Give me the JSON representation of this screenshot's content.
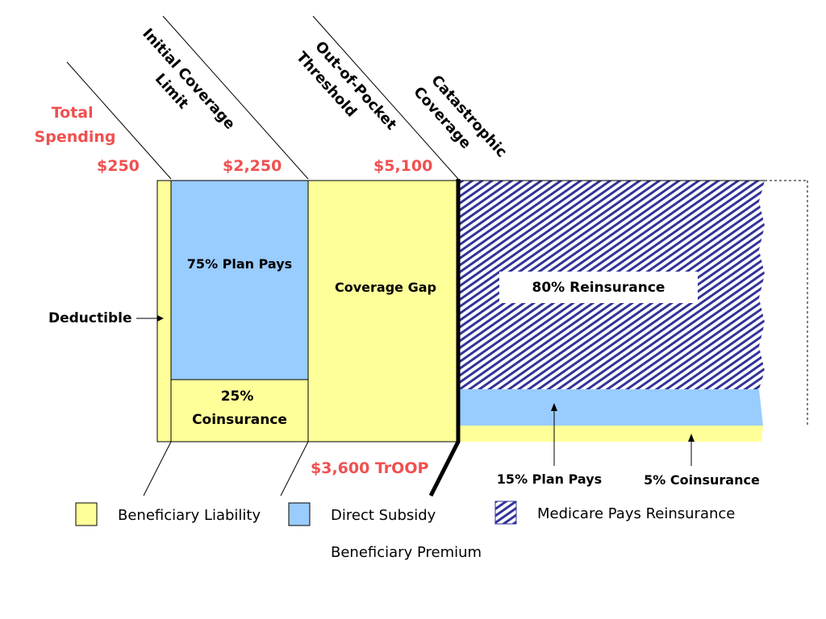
{
  "colors": {
    "beneficiary": "#ffff99",
    "subsidy": "#99ccff",
    "reinsurance": "#333399",
    "accent": "#f05050",
    "line": "#000000"
  },
  "header": {
    "total_spending_line1": "Total",
    "total_spending_line2": "Spending",
    "initial_coverage_line1": "Initial Coverage",
    "initial_coverage_line2": "Limit",
    "out_of_pocket_line1": "Out-of-Pocket",
    "out_of_pocket_line2": "Threshold",
    "catastrophic_line1": "Catastrophic",
    "catastrophic_line2": "Coverage"
  },
  "amounts": {
    "deductible_amount": "$250",
    "initial_limit_amount": "$2,250",
    "threshold_amount": "$5,100",
    "troop_amount": "$3,600 TrOOP"
  },
  "segments": {
    "deductible": "Deductible",
    "plan_pays_75": "75% Plan Pays",
    "coinsurance_25_line1": "25%",
    "coinsurance_25_line2": "Coinsurance",
    "coverage_gap": "Coverage Gap",
    "reinsurance_80": "80% Reinsurance",
    "plan_pays_15": "15% Plan Pays",
    "coinsurance_5": "5% Coinsurance"
  },
  "legend": {
    "beneficiary_liability": "Beneficiary Liability",
    "direct_subsidy": "Direct Subsidy",
    "medicare_reinsurance": "Medicare Pays Reinsurance",
    "beneficiary_premium": "Beneficiary Premium"
  }
}
